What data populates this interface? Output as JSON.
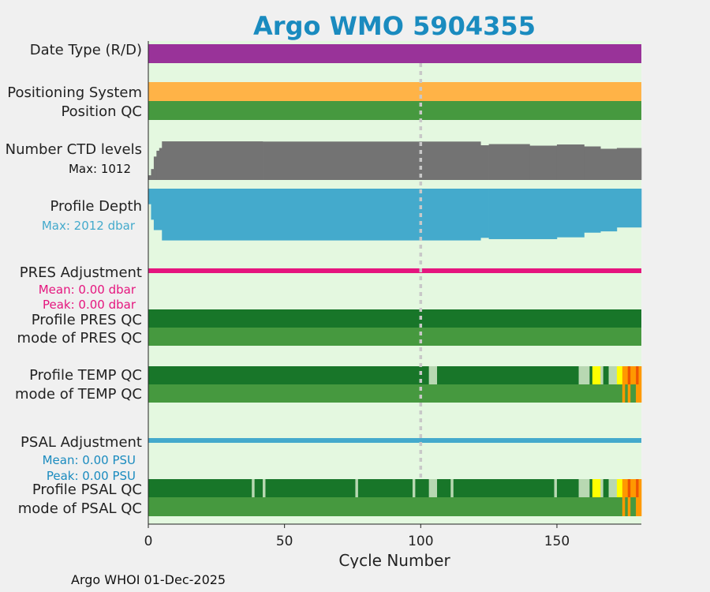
{
  "chart_data": {
    "type": "bar",
    "title": "Argo WMO 5904355",
    "xlabel": "Cycle Number",
    "xlim": [
      0,
      181
    ],
    "x_ticks": [
      0,
      50,
      100,
      150
    ],
    "reference_line_cycle": 100,
    "colors": {
      "title": "#1a8bbf",
      "background": "#e4f8e0",
      "date_type": "#993399",
      "positioning": "#ffb347",
      "qc_good": "#187629",
      "qc_mode": "#46993f",
      "qc_prob_good": "#b8d8b2",
      "qc_yellow": "#ffff00",
      "qc_orange": "#ff9900",
      "qc_red": "#ee5500",
      "ctd": "#737373",
      "depth": "#44aacc",
      "pres_adj": "#e5157e",
      "psal_adj": "#44aacc"
    },
    "rows": [
      {
        "label": "Date Type (R/D)"
      },
      {
        "label": "Positioning System"
      },
      {
        "label": "Position QC"
      },
      {
        "label": "Number CTD levels",
        "note": "Max: 1012"
      },
      {
        "label": "Profile Depth",
        "note": "Max: 2012 dbar"
      },
      {
        "label": "PRES Adjustment",
        "notes": [
          "Mean: 0.00 dbar",
          "Peak: 0.00 dbar"
        ]
      },
      {
        "label": "Profile PRES QC"
      },
      {
        "label": "mode of PRES QC"
      },
      {
        "label": "Profile TEMP QC"
      },
      {
        "label": "mode of TEMP QC"
      },
      {
        "label": "PSAL Adjustment",
        "notes": [
          "Mean: 0.00 PSU",
          "Peak: 0.00 PSU"
        ]
      },
      {
        "label": "Profile PSAL QC"
      },
      {
        "label": "mode of PSAL QC"
      }
    ],
    "ctd_levels": {
      "max": 1012,
      "series": [
        {
          "from": 0,
          "to": 1,
          "value": 120
        },
        {
          "from": 1,
          "to": 2,
          "value": 280
        },
        {
          "from": 2,
          "to": 3,
          "value": 600
        },
        {
          "from": 3,
          "to": 4,
          "value": 750
        },
        {
          "from": 4,
          "to": 5,
          "value": 820
        },
        {
          "from": 5,
          "to": 42,
          "value": 990
        },
        {
          "from": 42,
          "to": 122,
          "value": 985
        },
        {
          "from": 122,
          "to": 125,
          "value": 890
        },
        {
          "from": 125,
          "to": 140,
          "value": 920
        },
        {
          "from": 140,
          "to": 150,
          "value": 880
        },
        {
          "from": 150,
          "to": 160,
          "value": 910
        },
        {
          "from": 160,
          "to": 166,
          "value": 860
        },
        {
          "from": 166,
          "to": 172,
          "value": 800
        },
        {
          "from": 172,
          "to": 181,
          "value": 820
        }
      ]
    },
    "profile_depth": {
      "max": 2012,
      "series": [
        {
          "from": 0,
          "to": 1,
          "value": 600
        },
        {
          "from": 1,
          "to": 2,
          "value": 1200
        },
        {
          "from": 2,
          "to": 5,
          "value": 1600
        },
        {
          "from": 5,
          "to": 122,
          "value": 2000
        },
        {
          "from": 122,
          "to": 125,
          "value": 1900
        },
        {
          "from": 125,
          "to": 150,
          "value": 1950
        },
        {
          "from": 150,
          "to": 160,
          "value": 1880
        },
        {
          "from": 160,
          "to": 166,
          "value": 1700
        },
        {
          "from": 166,
          "to": 172,
          "value": 1650
        },
        {
          "from": 172,
          "to": 181,
          "value": 1500
        }
      ]
    },
    "temp_qc": {
      "profile": [
        {
          "from": 0,
          "to": 103,
          "c": "qc_good"
        },
        {
          "from": 103,
          "to": 106,
          "c": "qc_prob_good"
        },
        {
          "from": 106,
          "to": 158,
          "c": "qc_good"
        },
        {
          "from": 158,
          "to": 162,
          "c": "qc_prob_good"
        },
        {
          "from": 162,
          "to": 163,
          "c": "qc_good"
        },
        {
          "from": 163,
          "to": 166,
          "c": "qc_yellow"
        },
        {
          "from": 166,
          "to": 167,
          "c": "qc_prob_good"
        },
        {
          "from": 167,
          "to": 169,
          "c": "qc_good"
        },
        {
          "from": 169,
          "to": 172,
          "c": "qc_prob_good"
        },
        {
          "from": 172,
          "to": 174,
          "c": "qc_yellow"
        },
        {
          "from": 174,
          "to": 176,
          "c": "qc_orange"
        },
        {
          "from": 176,
          "to": 177,
          "c": "qc_red"
        },
        {
          "from": 177,
          "to": 179,
          "c": "qc_orange"
        },
        {
          "from": 179,
          "to": 180,
          "c": "qc_red"
        },
        {
          "from": 180,
          "to": 181,
          "c": "qc_orange"
        }
      ],
      "mode": [
        {
          "from": 0,
          "to": 174,
          "c": "qc_mode"
        },
        {
          "from": 174,
          "to": 175,
          "c": "qc_orange"
        },
        {
          "from": 175,
          "to": 176,
          "c": "qc_mode"
        },
        {
          "from": 176,
          "to": 177,
          "c": "qc_orange"
        },
        {
          "from": 177,
          "to": 179,
          "c": "qc_mode"
        },
        {
          "from": 179,
          "to": 181,
          "c": "qc_orange"
        }
      ]
    },
    "psal_qc": {
      "profile": [
        {
          "from": 0,
          "to": 38,
          "c": "qc_good"
        },
        {
          "from": 38,
          "to": 39,
          "c": "qc_prob_good"
        },
        {
          "from": 39,
          "to": 42,
          "c": "qc_good"
        },
        {
          "from": 42,
          "to": 43,
          "c": "qc_prob_good"
        },
        {
          "from": 43,
          "to": 76,
          "c": "qc_good"
        },
        {
          "from": 76,
          "to": 77,
          "c": "qc_prob_good"
        },
        {
          "from": 77,
          "to": 97,
          "c": "qc_good"
        },
        {
          "from": 97,
          "to": 98,
          "c": "qc_prob_good"
        },
        {
          "from": 98,
          "to": 103,
          "c": "qc_good"
        },
        {
          "from": 103,
          "to": 106,
          "c": "qc_prob_good"
        },
        {
          "from": 106,
          "to": 111,
          "c": "qc_good"
        },
        {
          "from": 111,
          "to": 112,
          "c": "qc_prob_good"
        },
        {
          "from": 112,
          "to": 149,
          "c": "qc_good"
        },
        {
          "from": 149,
          "to": 150,
          "c": "qc_prob_good"
        },
        {
          "from": 150,
          "to": 158,
          "c": "qc_good"
        },
        {
          "from": 158,
          "to": 162,
          "c": "qc_prob_good"
        },
        {
          "from": 162,
          "to": 163,
          "c": "qc_good"
        },
        {
          "from": 163,
          "to": 166,
          "c": "qc_yellow"
        },
        {
          "from": 166,
          "to": 167,
          "c": "qc_prob_good"
        },
        {
          "from": 167,
          "to": 169,
          "c": "qc_good"
        },
        {
          "from": 169,
          "to": 172,
          "c": "qc_prob_good"
        },
        {
          "from": 172,
          "to": 174,
          "c": "qc_yellow"
        },
        {
          "from": 174,
          "to": 176,
          "c": "qc_orange"
        },
        {
          "from": 176,
          "to": 177,
          "c": "qc_red"
        },
        {
          "from": 177,
          "to": 179,
          "c": "qc_orange"
        },
        {
          "from": 179,
          "to": 180,
          "c": "qc_red"
        },
        {
          "from": 180,
          "to": 181,
          "c": "qc_orange"
        }
      ],
      "mode": [
        {
          "from": 0,
          "to": 174,
          "c": "qc_mode"
        },
        {
          "from": 174,
          "to": 175,
          "c": "qc_orange"
        },
        {
          "from": 175,
          "to": 176,
          "c": "qc_mode"
        },
        {
          "from": 176,
          "to": 177,
          "c": "qc_orange"
        },
        {
          "from": 177,
          "to": 179,
          "c": "qc_mode"
        },
        {
          "from": 179,
          "to": 181,
          "c": "qc_orange"
        }
      ]
    }
  },
  "footer": "Argo WHOI 01-Dec-2025"
}
